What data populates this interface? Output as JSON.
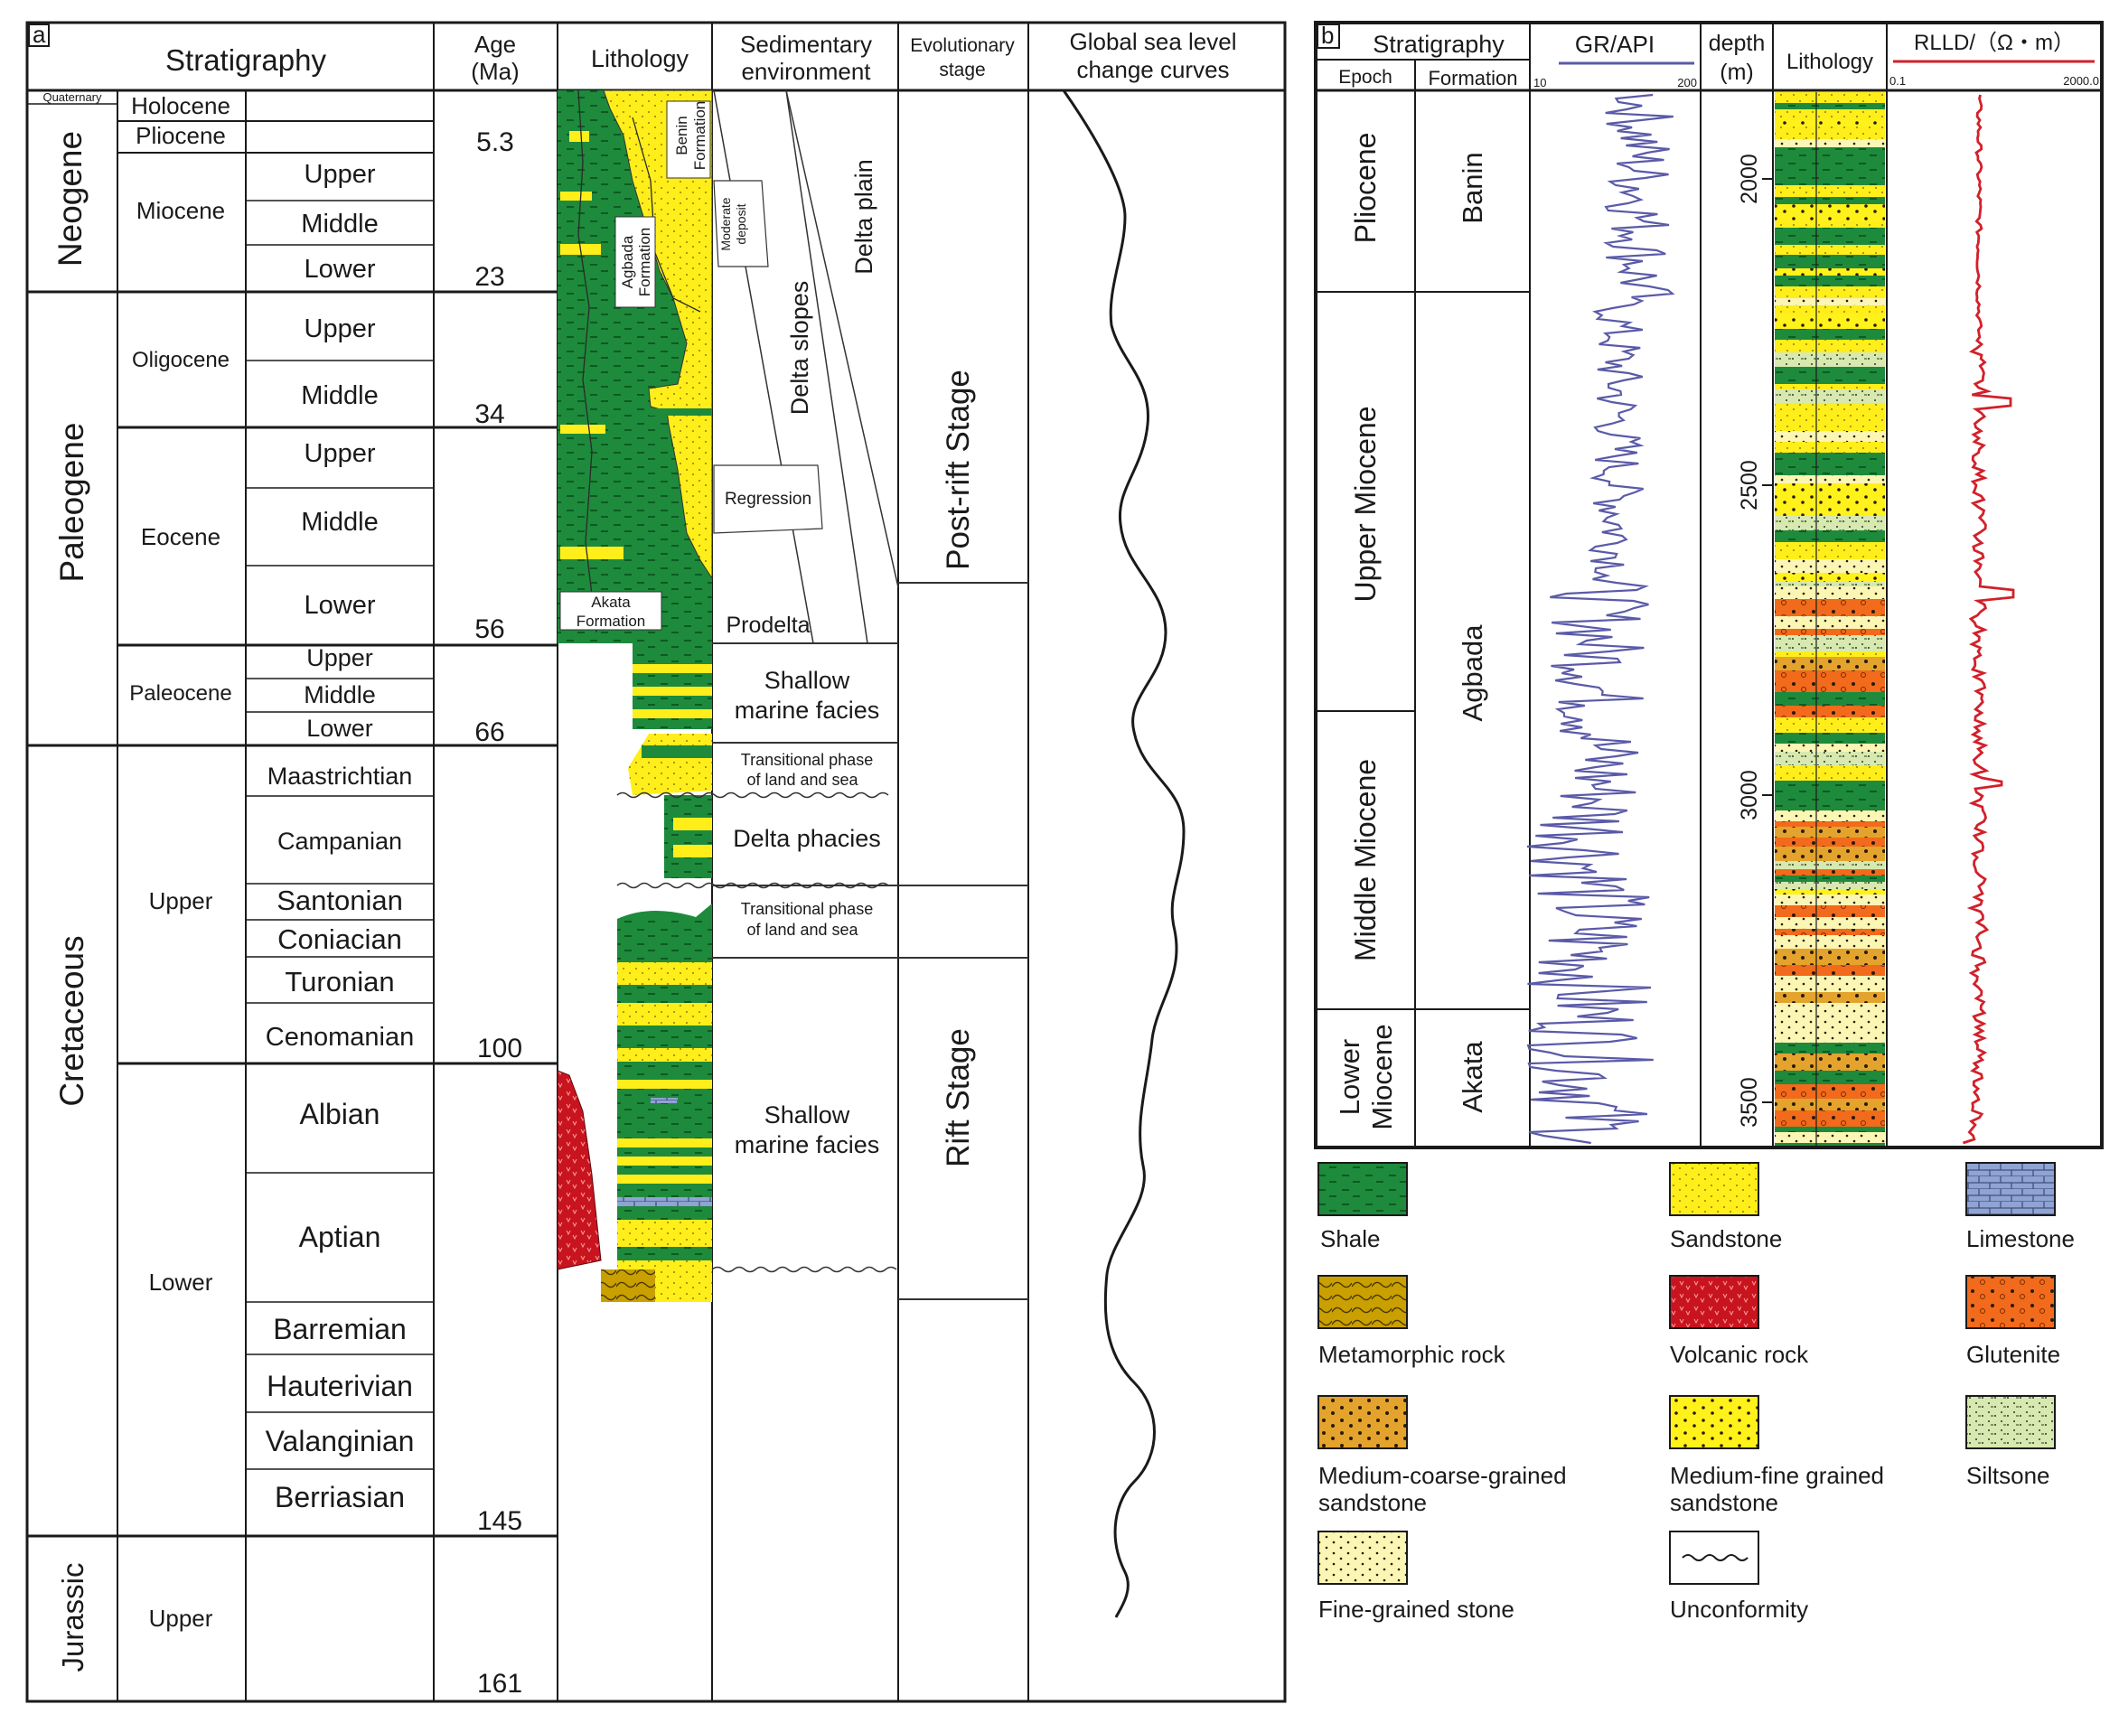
{
  "panel_a": {
    "label": "a",
    "headers": {
      "stratigraphy": "Stratigraphy",
      "age_line1": "Age",
      "age_line2": "(Ma)",
      "lithology": "Lithology",
      "sed_line1": "Sedimentary",
      "sed_line2": "environment",
      "evo_line1": "Evolutionary",
      "evo_line2": "stage",
      "sea_line1": "Global sea level",
      "sea_line2": "change curves"
    },
    "systems": [
      "Quaternary",
      "Neogene",
      "Paleogene",
      "Cretaceous",
      "Jurassic"
    ],
    "series": [
      "Holocene",
      "Pliocene",
      "Miocene",
      "Oligocene",
      "Eocene",
      "Paleocene",
      "Upper",
      "Lower",
      "Upper"
    ],
    "stages": [
      "Upper",
      "Middle",
      "Lower",
      "Upper",
      "Middle",
      "Upper",
      "Middle",
      "Lower",
      "Upper",
      "Middle",
      "Lower",
      "Maastrichtian",
      "Campanian",
      "Santonian",
      "Coniacian",
      "Turonian",
      "Cenomanian",
      "Albian",
      "Aptian",
      "Barremian",
      "Hauterivian",
      "Valanginian",
      "Berriasian"
    ],
    "ages": [
      "5.3",
      "23",
      "34",
      "56",
      "66",
      "100",
      "145",
      "161"
    ],
    "lithology_labels": {
      "benin_1": "Benin",
      "benin_2": "Formation",
      "agbada_1": "Agbada",
      "agbada_2": "Formation",
      "akata_1": "Akata",
      "akata_2": "Formation"
    },
    "environments": {
      "delta_plain": "Delta plain",
      "delta_slopes": "Delta slopes",
      "moderate_1": "Moderate",
      "moderate_2": "deposit",
      "regression": "Regression",
      "prodelta": "Prodelta",
      "shallow_1_a": "Shallow",
      "shallow_1_b": "marine facies",
      "transitional_1_a": "Transitional phase",
      "transitional_1_b": "of land and sea",
      "delta_phacies": "Delta phacies",
      "transitional_2_a": "Transitional phase",
      "transitional_2_b": "of land and sea",
      "shallow_2_a": "Shallow",
      "shallow_2_b": "marine facies"
    },
    "stages_evo": {
      "post_rift": "Post-rift Stage",
      "rift": "Rift Stage"
    }
  },
  "panel_b": {
    "label": "b",
    "headers": {
      "stratigraphy": "Stratigraphy",
      "epoch": "Epoch",
      "formation": "Formation",
      "gr": "GR/API",
      "gr_min": "10",
      "gr_max": "200",
      "depth_1": "depth",
      "depth_2": "(m)",
      "lithology": "Lithology",
      "rlld": "RLLD/（Ω・m）",
      "rlld_min": "0.1",
      "rlld_max": "2000.0"
    },
    "epochs": [
      "Pliocene",
      "Upper Miocene",
      "Middle Miocene",
      "Lower",
      "Miocene"
    ],
    "formations": [
      "Banin",
      "Agbada",
      "Akata"
    ],
    "depth_ticks": [
      "2000",
      "2500",
      "3000",
      "3500"
    ],
    "gr_color": "#5a5aa8",
    "rlld_color": "#d2202a"
  },
  "legend": {
    "shale": "Shale",
    "sandstone": "Sandstone",
    "limestone": "Limestone",
    "metamorphic": "Metamorphic rock",
    "volcanic": "Volcanic rock",
    "glutenite": "Glutenite",
    "medium_coarse_1": "Medium-coarse-grained",
    "medium_coarse_2": "sandstone",
    "medium_fine_1": "Medium-fine grained",
    "medium_fine_2": "sandstone",
    "siltstone": "Siltsone",
    "fine_grained": "Fine-grained stone",
    "unconformity": "Unconformity"
  },
  "colors": {
    "shale": "#1e8a3c",
    "sandstone": "#ffee1a",
    "limestone": "#8fa3d4",
    "metamorphic": "#c9a000",
    "volcanic": "#c8141e",
    "glutenite": "#f26a1b",
    "medium_coarse": "#e3a32c",
    "medium_fine": "#fff21a",
    "siltstone": "#d7e9b0",
    "fine_grained": "#fbf6b4"
  }
}
